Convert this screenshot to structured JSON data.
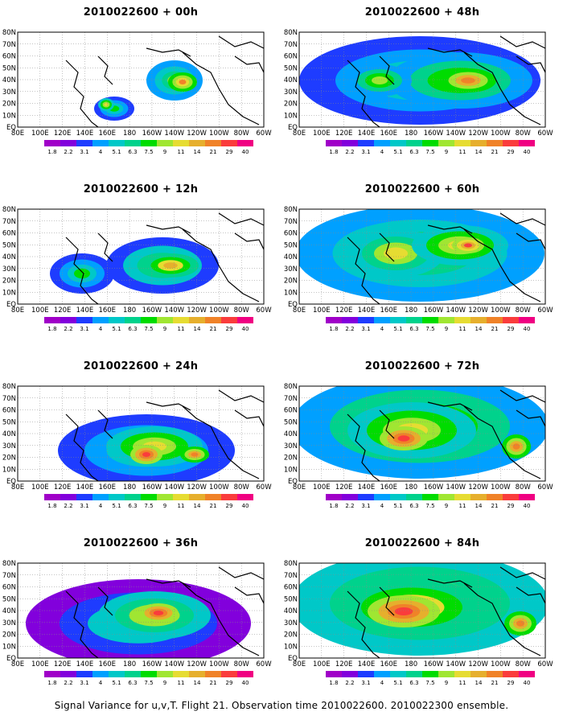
{
  "panels": [
    {
      "title": "2010022600 + 00h",
      "level": 0
    },
    {
      "title": "2010022600 + 48h",
      "level": 4
    },
    {
      "title": "2010022600 + 12h",
      "level": 1
    },
    {
      "title": "2010022600 + 60h",
      "level": 5
    },
    {
      "title": "2010022600 + 24h",
      "level": 2
    },
    {
      "title": "2010022600 + 72h",
      "level": 6
    },
    {
      "title": "2010022600 + 36h",
      "level": 3
    },
    {
      "title": "2010022600 + 84h",
      "level": 7
    }
  ],
  "lat_labels": [
    "EQ",
    "10N",
    "20N",
    "30N",
    "40N",
    "50N",
    "60N",
    "70N",
    "80N"
  ],
  "lon_labels": [
    "80E",
    "100E",
    "120E",
    "140E",
    "160E",
    "180",
    "160W",
    "140W",
    "120W",
    "100W",
    "80W",
    "60W"
  ],
  "colorbar": {
    "labels": [
      "1.8",
      "2.2",
      "3.1",
      "4",
      "5.1",
      "6.3",
      "7.5",
      "9",
      "11",
      "14",
      "21",
      "29",
      "40"
    ],
    "colors": [
      "#a000c8",
      "#8200dc",
      "#1e3cff",
      "#00a0ff",
      "#00c8c8",
      "#00d28c",
      "#00dc00",
      "#a0e632",
      "#e6dc32",
      "#e6af2d",
      "#f08228",
      "#fa3c3c",
      "#f00082"
    ]
  },
  "caption": "Signal Variance for u,v,T. Flight 21. Observation time 2010022600. 2010022300 ensemble."
}
